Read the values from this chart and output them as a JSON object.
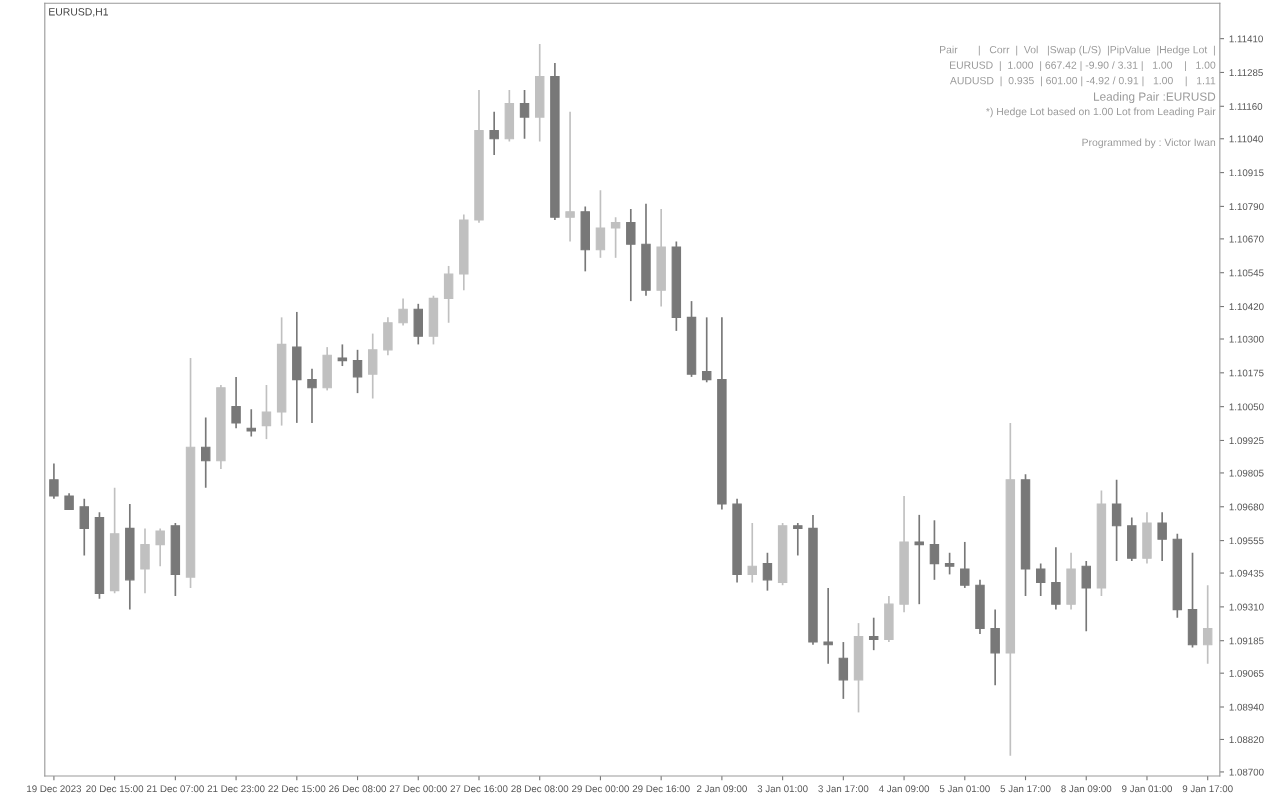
{
  "chart_data": {
    "type": "candlestick",
    "title": "EURUSD,H1",
    "annotations": [
      "Pair       |   Corr  |  Vol   |Swap (L/S)  |PipValue  |Hedge Lot  |",
      "EURUSD  |  1.000  | 667.42 | -9.90 / 3.31 |   1.00    |   1.00",
      "AUDUSD  |  0.935  | 601.00 | -4.92 / 0.91 |   1.00    |   1.11",
      "Leading Pair :EURUSD",
      "*) Hedge Lot based on 1.00 Lot from Leading Pair",
      "Programmed by : Victor Iwan"
    ],
    "categories": [
      "19 Dec 2023",
      null,
      null,
      null,
      "20 Dec 15:00",
      null,
      null,
      null,
      "21 Dec 07:00",
      null,
      null,
      null,
      "21 Dec 23:00",
      null,
      null,
      null,
      "22 Dec 15:00",
      null,
      null,
      null,
      "26 Dec 08:00",
      null,
      null,
      null,
      "27 Dec 00:00",
      null,
      null,
      null,
      "27 Dec 16:00",
      null,
      null,
      null,
      "28 Dec 08:00",
      null,
      null,
      null,
      "29 Dec 00:00",
      null,
      null,
      null,
      "29 Dec 16:00",
      null,
      null,
      null,
      "2 Jan 09:00",
      null,
      null,
      null,
      "3 Jan 01:00",
      null,
      null,
      null,
      "3 Jan 17:00",
      null,
      null,
      null,
      "4 Jan 09:00",
      null,
      null,
      null,
      "5 Jan 01:00",
      null,
      null,
      null,
      "5 Jan 17:00",
      null,
      null,
      null,
      "8 Jan 09:00",
      null,
      null,
      null,
      "9 Jan 01:00",
      null,
      null,
      null,
      "9 Jan 17:00"
    ],
    "ohlc": [
      [
        1.0978,
        1.0984,
        1.0971,
        1.0972
      ],
      [
        1.0972,
        1.0973,
        1.0967,
        1.0967
      ],
      [
        1.0968,
        1.0971,
        1.095,
        1.096
      ],
      [
        1.0964,
        1.0966,
        1.0934,
        1.0936
      ],
      [
        1.0937,
        1.0975,
        1.0936,
        1.0958
      ],
      [
        1.096,
        1.0969,
        1.093,
        1.0941
      ],
      [
        1.0945,
        1.096,
        1.0936,
        1.0954
      ],
      [
        1.0954,
        1.096,
        1.0946,
        1.0959
      ],
      [
        1.0961,
        1.0962,
        1.0935,
        1.0943
      ],
      [
        1.0942,
        1.1023,
        1.0938,
        1.099
      ],
      [
        1.099,
        1.1001,
        1.0975,
        1.0985
      ],
      [
        1.0985,
        1.1013,
        1.0982,
        1.1012
      ],
      [
        1.1005,
        1.1016,
        1.0997,
        1.0999
      ],
      [
        1.0997,
        1.1004,
        1.0994,
        1.0996
      ],
      [
        1.0998,
        1.1013,
        1.0993,
        1.1003
      ],
      [
        1.1003,
        1.1038,
        1.0998,
        1.1028
      ],
      [
        1.1027,
        1.104,
        1.0999,
        1.1015
      ],
      [
        1.1015,
        1.1019,
        1.0999,
        1.1012
      ],
      [
        1.1012,
        1.1027,
        1.1011,
        1.1024
      ],
      [
        1.1023,
        1.1028,
        1.102,
        1.1022
      ],
      [
        1.1022,
        1.1026,
        1.101,
        1.1016
      ],
      [
        1.1017,
        1.1032,
        1.1008,
        1.1026
      ],
      [
        1.1026,
        1.1038,
        1.1024,
        1.1036
      ],
      [
        1.1036,
        1.1045,
        1.1035,
        1.1041
      ],
      [
        1.1041,
        1.1043,
        1.1028,
        1.1031
      ],
      [
        1.1031,
        1.1046,
        1.1028,
        1.1045
      ],
      [
        1.1045,
        1.1057,
        1.1036,
        1.1054
      ],
      [
        1.1054,
        1.1076,
        1.1048,
        1.1074
      ],
      [
        1.1074,
        1.1122,
        1.1073,
        1.1107
      ],
      [
        1.1107,
        1.1114,
        1.1098,
        1.1104
      ],
      [
        1.1104,
        1.1122,
        1.1103,
        1.1117
      ],
      [
        1.1117,
        1.1122,
        1.1104,
        1.1112
      ],
      [
        1.1112,
        1.1139,
        1.1103,
        1.1127
      ],
      [
        1.1127,
        1.1132,
        1.1074,
        1.1075
      ],
      [
        1.1075,
        1.1114,
        1.1066,
        1.1077
      ],
      [
        1.1077,
        1.1079,
        1.1055,
        1.1063
      ],
      [
        1.1063,
        1.1085,
        1.106,
        1.1071
      ],
      [
        1.1071,
        1.1075,
        1.106,
        1.1073
      ],
      [
        1.1073,
        1.1078,
        1.1044,
        1.1065
      ],
      [
        1.1065,
        1.108,
        1.1046,
        1.1048
      ],
      [
        1.1048,
        1.1078,
        1.1042,
        1.1064
      ],
      [
        1.1064,
        1.1066,
        1.1033,
        1.1038
      ],
      [
        1.1038,
        1.1044,
        1.1016,
        1.1017
      ],
      [
        1.1018,
        1.1038,
        1.1014,
        1.1015
      ],
      [
        1.1015,
        1.1038,
        1.0967,
        1.0969
      ],
      [
        1.0969,
        1.0971,
        1.094,
        1.0943
      ],
      [
        1.0943,
        1.0962,
        1.094,
        1.0946
      ],
      [
        1.0947,
        1.0951,
        1.0937,
        1.0941
      ],
      [
        1.094,
        1.0962,
        1.0939,
        1.0961
      ],
      [
        1.0961,
        1.0962,
        1.095,
        1.096
      ],
      [
        1.096,
        1.0965,
        1.0917,
        1.0918
      ],
      [
        1.0918,
        1.0938,
        1.091,
        1.0917
      ],
      [
        1.0912,
        1.0918,
        1.0897,
        1.0904
      ],
      [
        1.0904,
        1.0925,
        1.0892,
        1.092
      ],
      [
        1.092,
        1.0927,
        1.0915,
        1.0919
      ],
      [
        1.0919,
        1.0935,
        1.0918,
        1.0932
      ],
      [
        1.0932,
        1.0972,
        1.0929,
        1.0955
      ],
      [
        1.0955,
        1.0965,
        1.0932,
        1.0954
      ],
      [
        1.0954,
        1.0963,
        1.0941,
        1.0947
      ],
      [
        1.0947,
        1.0951,
        1.0943,
        1.0946
      ],
      [
        1.0945,
        1.0955,
        1.0938,
        1.0939
      ],
      [
        1.0939,
        1.0941,
        1.0921,
        1.0923
      ],
      [
        1.0923,
        1.093,
        1.0902,
        1.0914
      ],
      [
        1.0914,
        1.0999,
        1.0876,
        1.0978
      ],
      [
        1.0978,
        1.098,
        1.0935,
        1.0945
      ],
      [
        1.0945,
        1.0947,
        1.0935,
        1.094
      ],
      [
        1.094,
        1.0953,
        1.093,
        1.0932
      ],
      [
        1.0932,
        1.0951,
        1.093,
        1.0945
      ],
      [
        1.0946,
        1.0948,
        1.0922,
        1.0938
      ],
      [
        1.0938,
        1.0974,
        1.0935,
        1.0969
      ],
      [
        1.0969,
        1.0978,
        1.0948,
        1.0961
      ],
      [
        1.0961,
        1.0964,
        1.0948,
        1.0949
      ],
      [
        1.0949,
        1.0966,
        1.0947,
        1.0962
      ],
      [
        1.0962,
        1.0966,
        1.0948,
        1.0956
      ],
      [
        1.0956,
        1.0958,
        1.0927,
        1.093
      ],
      [
        1.093,
        1.0951,
        1.0916,
        1.0917
      ],
      [
        1.0917,
        1.0939,
        1.091,
        1.0923
      ]
    ],
    "colors": [
      "#787878",
      "#787878",
      "#787878",
      "#787878",
      "#c0c0c0",
      "#787878",
      "#c0c0c0",
      "#c0c0c0",
      "#787878",
      "#c0c0c0",
      "#787878",
      "#c0c0c0",
      "#787878",
      "#787878",
      "#c0c0c0",
      "#c0c0c0",
      "#787878",
      "#787878",
      "#c0c0c0",
      "#787878",
      "#787878",
      "#c0c0c0",
      "#c0c0c0",
      "#c0c0c0",
      "#787878",
      "#c0c0c0",
      "#c0c0c0",
      "#c0c0c0",
      "#c0c0c0",
      "#787878",
      "#c0c0c0",
      "#787878",
      "#c0c0c0",
      "#787878",
      "#c0c0c0",
      "#787878",
      "#c0c0c0",
      "#c0c0c0",
      "#787878",
      "#787878",
      "#c0c0c0",
      "#787878",
      "#787878",
      "#787878",
      "#787878",
      "#787878",
      "#c0c0c0",
      "#787878",
      "#c0c0c0",
      "#787878",
      "#787878",
      "#787878",
      "#787878",
      "#c0c0c0",
      "#787878",
      "#c0c0c0",
      "#c0c0c0",
      "#787878",
      "#787878",
      "#787878",
      "#787878",
      "#787878",
      "#787878",
      "#c0c0c0",
      "#787878",
      "#787878",
      "#787878",
      "#c0c0c0",
      "#787878",
      "#c0c0c0",
      "#787878",
      "#787878",
      "#c0c0c0",
      "#787878",
      "#787878",
      "#787878",
      "#c0c0c0"
    ],
    "ylim": [
      1.08685,
      1.11541
    ],
    "yticks": [
      {
        "value": 1.1141,
        "label": "1.11410"
      },
      {
        "value": 1.11285,
        "label": "1.11285"
      },
      {
        "value": 1.1116,
        "label": "1.11160"
      },
      {
        "value": 1.1104,
        "label": "1.11040"
      },
      {
        "value": 1.10915,
        "label": "1.10915"
      },
      {
        "value": 1.1079,
        "label": "1.10790"
      },
      {
        "value": 1.1067,
        "label": "1.10670"
      },
      {
        "value": 1.10545,
        "label": "1.10545"
      },
      {
        "value": 1.1042,
        "label": "1.10420"
      },
      {
        "value": 1.103,
        "label": "1.10300"
      },
      {
        "value": 1.10175,
        "label": "1.10175"
      },
      {
        "value": 1.1005,
        "label": "1.10050"
      },
      {
        "value": 1.09925,
        "label": "1.09925"
      },
      {
        "value": 1.09805,
        "label": "1.09805"
      },
      {
        "value": 1.0968,
        "label": "1.09680"
      },
      {
        "value": 1.09555,
        "label": "1.09555"
      },
      {
        "value": 1.09435,
        "label": "1.09435"
      },
      {
        "value": 1.0931,
        "label": "1.09310"
      },
      {
        "value": 1.09185,
        "label": "1.09185"
      },
      {
        "value": 1.09065,
        "label": "1.09065"
      },
      {
        "value": 1.0894,
        "label": "1.08940"
      },
      {
        "value": 1.0882,
        "label": "1.08820"
      },
      {
        "value": 1.087,
        "label": "1.08700"
      }
    ],
    "grid": false,
    "legend": false
  }
}
